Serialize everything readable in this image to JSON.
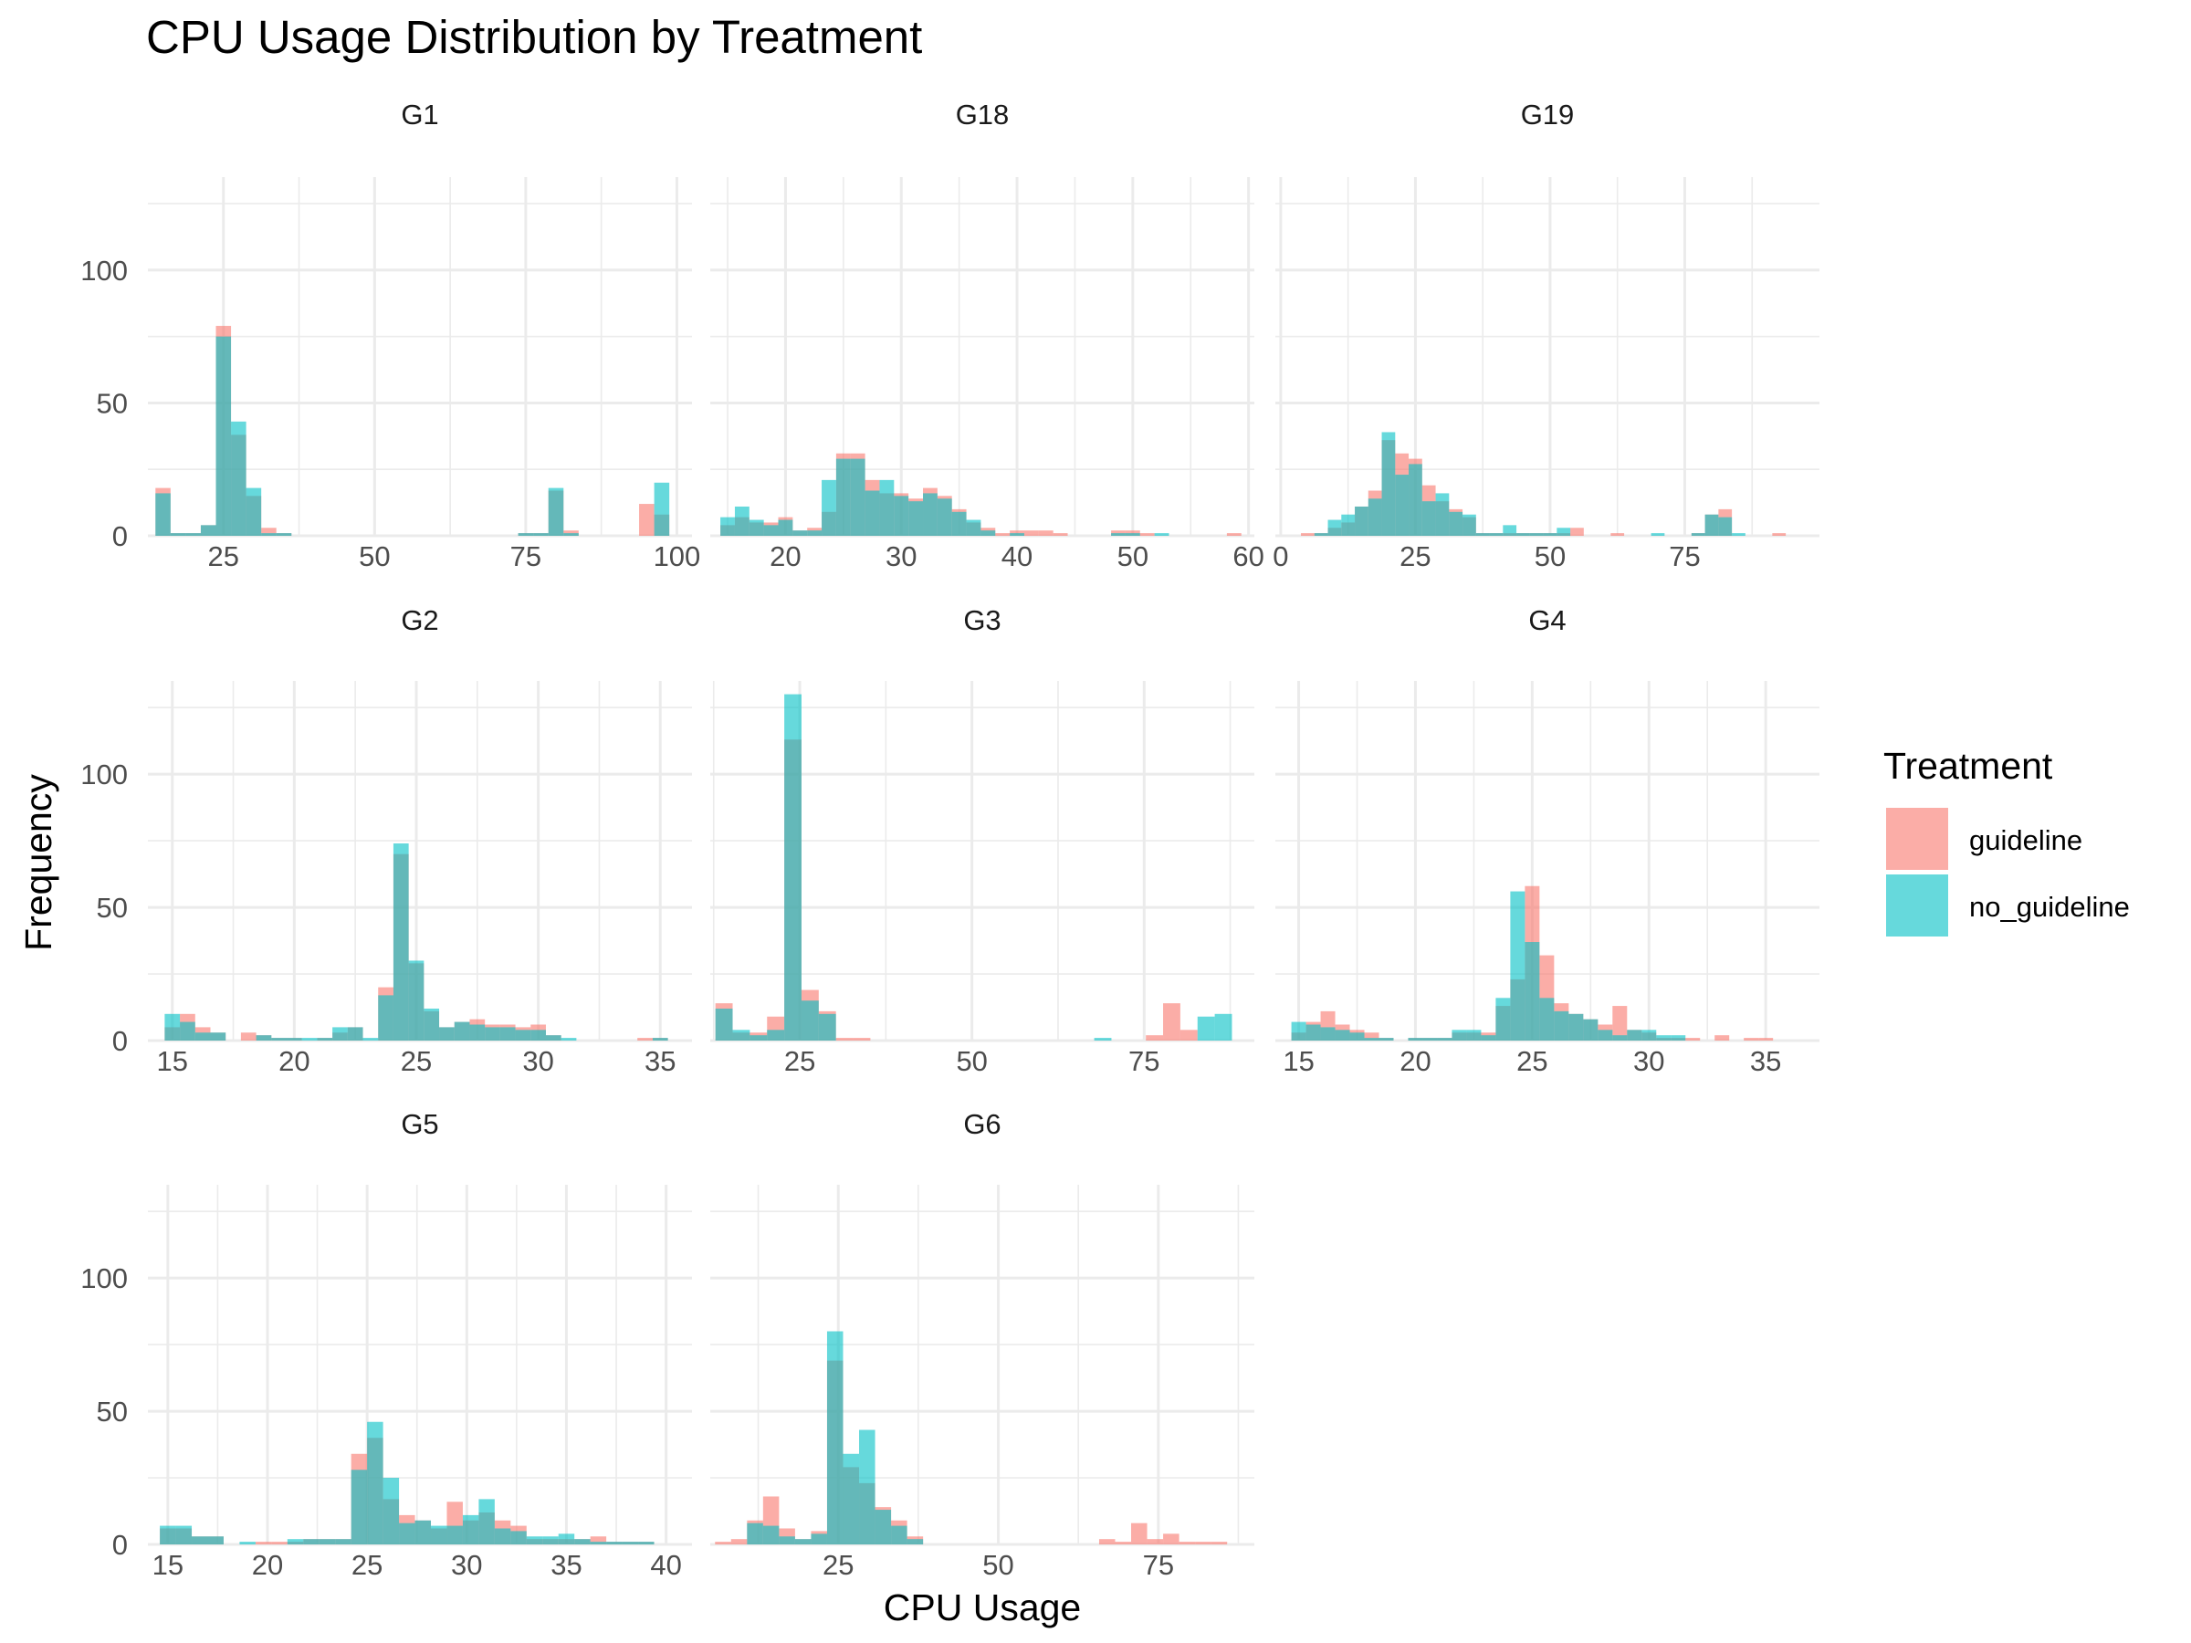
{
  "chart_data": {
    "type": "histogram",
    "title": "CPU Usage Distribution by Treatment",
    "xlabel": "CPU Usage",
    "ylabel": "Frequency",
    "ylim": [
      0,
      135
    ],
    "y_ticks": [
      0,
      50,
      100
    ],
    "legend": {
      "title": "Treatment",
      "placement": "right",
      "entries": [
        {
          "name": "guideline",
          "color": "#F8766D"
        },
        {
          "name": "no_guideline",
          "color": "#00BFC4"
        }
      ]
    },
    "bar_opacity": 0.6,
    "panels": [
      {
        "name": "G1",
        "xlim": [
          12.5,
          102.5
        ],
        "x_ticks": [
          25,
          50,
          75,
          100
        ],
        "x": [
          15,
          17.5,
          20,
          22.5,
          25,
          27.5,
          30,
          32.5,
          35,
          75,
          77.5,
          80,
          82.5,
          85,
          95,
          97.5
        ],
        "series": [
          {
            "name": "guideline",
            "values": [
              18,
              1,
              1,
              4,
              79,
              38,
              15,
              3,
              1,
              1,
              1,
              17,
              2,
              0,
              12,
              8
            ]
          },
          {
            "name": "no_guideline",
            "values": [
              16,
              1,
              1,
              4,
              75,
              43,
              18,
              1,
              1,
              1,
              1,
              18,
              1,
              0,
              0,
              20
            ]
          }
        ]
      },
      {
        "name": "G18",
        "xlim": [
          13.5,
          60.5
        ],
        "x_ticks": [
          20,
          30,
          40,
          50,
          60
        ],
        "x": [
          15,
          16.25,
          17.5,
          18.75,
          20,
          21.25,
          22.5,
          23.75,
          25,
          26.25,
          27.5,
          28.75,
          30,
          31.25,
          32.5,
          33.75,
          35,
          36.25,
          37.5,
          38.75,
          40,
          41.25,
          42.5,
          43.75,
          45,
          46.25,
          47.5,
          48.75,
          50,
          51.25,
          52.5,
          53.75,
          55,
          56.25,
          57.5,
          58.75
        ],
        "series": [
          {
            "name": "guideline",
            "values": [
              4,
              7,
              5,
              5,
              7,
              2,
              3,
              9,
              31,
              31,
              21,
              16,
              16,
              14,
              18,
              15,
              10,
              5,
              3,
              1,
              2,
              2,
              2,
              1,
              0,
              0,
              0,
              2,
              2,
              1,
              0,
              0,
              0,
              0,
              0,
              1
            ]
          },
          {
            "name": "no_guideline",
            "values": [
              7,
              11,
              6,
              4,
              6,
              2,
              2,
              21,
              29,
              29,
              17,
              21,
              15,
              13,
              16,
              14,
              9,
              6,
              2,
              0,
              1,
              0,
              0,
              0,
              0,
              0,
              0,
              1,
              1,
              0,
              1,
              0,
              0,
              0,
              0,
              0
            ]
          }
        ]
      },
      {
        "name": "G19",
        "xlim": [
          -1,
          100
        ],
        "x_ticks": [
          0,
          25,
          50,
          75
        ],
        "x": [
          5,
          7.5,
          10,
          12.5,
          15,
          17.5,
          20,
          22.5,
          25,
          27.5,
          30,
          32.5,
          35,
          37.5,
          40,
          42.5,
          45,
          47.5,
          50,
          52.5,
          55,
          57.5,
          60,
          62.5,
          65,
          67.5,
          70,
          72.5,
          75,
          77.5,
          80,
          82.5,
          85,
          87.5,
          90,
          92.5
        ],
        "series": [
          {
            "name": "guideline",
            "values": [
              1,
              1,
              3,
              5,
              11,
              17,
              36,
              31,
              29,
              19,
              13,
              10,
              7,
              1,
              1,
              1,
              1,
              1,
              1,
              1,
              3,
              0,
              0,
              1,
              0,
              0,
              0,
              0,
              0,
              1,
              8,
              10,
              0,
              0,
              0,
              1
            ]
          },
          {
            "name": "no_guideline",
            "values": [
              0,
              1,
              6,
              8,
              11,
              14,
              39,
              23,
              27,
              13,
              16,
              9,
              8,
              1,
              1,
              4,
              1,
              1,
              1,
              3,
              0,
              0,
              0,
              0,
              0,
              0,
              1,
              0,
              0,
              1,
              8,
              7,
              1,
              0,
              0,
              0
            ]
          }
        ]
      },
      {
        "name": "G2",
        "xlim": [
          14,
          36.3
        ],
        "x_ticks": [
          15,
          20,
          25,
          30,
          35
        ],
        "x": [
          15,
          15.625,
          16.25,
          16.875,
          17.5,
          18.125,
          18.75,
          19.375,
          20,
          20.625,
          21.25,
          21.875,
          22.5,
          23.125,
          23.75,
          24.375,
          25,
          25.625,
          26.25,
          26.875,
          27.5,
          28.125,
          28.75,
          29.375,
          30,
          30.625,
          31.25,
          31.875,
          32.5,
          33.125,
          33.75,
          34.375,
          35,
          35.625
        ],
        "series": [
          {
            "name": "guideline",
            "values": [
              5,
              10,
              5,
              3,
              0,
              3,
              2,
              1,
              1,
              0,
              1,
              3,
              5,
              0,
              20,
              70,
              29,
              11,
              5,
              7,
              8,
              6,
              6,
              5,
              6,
              2,
              0,
              0,
              0,
              0,
              0,
              1,
              1,
              0
            ]
          },
          {
            "name": "no_guideline",
            "values": [
              10,
              7,
              3,
              3,
              0,
              0,
              2,
              1,
              1,
              1,
              1,
              5,
              5,
              1,
              17,
              74,
              30,
              12,
              5,
              7,
              6,
              5,
              5,
              4,
              4,
              2,
              1,
              0,
              0,
              0,
              0,
              0,
              1,
              0
            ]
          }
        ]
      },
      {
        "name": "G3",
        "xlim": [
          12,
          91
        ],
        "x_ticks": [
          25,
          50,
          75
        ],
        "x": [
          14,
          16.5,
          19,
          21.5,
          24,
          26.5,
          29,
          31.5,
          34,
          69,
          76.5,
          79,
          81.5,
          84,
          86.5
        ],
        "series": [
          {
            "name": "guideline",
            "values": [
              14,
              3,
              3,
              9,
              113,
              19,
              11,
              1,
              1,
              0,
              2,
              14,
              4,
              0,
              0
            ]
          },
          {
            "name": "no_guideline",
            "values": [
              12,
              4,
              2,
              4,
              130,
              15,
              10,
              0,
              0,
              1,
              0,
              0,
              0,
              9,
              10
            ]
          }
        ]
      },
      {
        "name": "G4",
        "xlim": [
          14,
          37.3
        ],
        "x_ticks": [
          15,
          20,
          25,
          30,
          35
        ],
        "x": [
          15,
          15.625,
          16.25,
          16.875,
          17.5,
          18.125,
          18.75,
          19.375,
          20,
          20.625,
          21.25,
          21.875,
          22.5,
          23.125,
          23.75,
          24.375,
          25,
          25.625,
          26.25,
          26.875,
          27.5,
          28.125,
          28.75,
          29.375,
          30,
          30.625,
          31.25,
          31.875,
          32.5,
          33.125,
          33.75,
          34.375,
          35,
          35.625,
          36.25
        ],
        "series": [
          {
            "name": "guideline",
            "values": [
              3,
              7,
              11,
              6,
              4,
              3,
              1,
              0,
              1,
              1,
              1,
              3,
              3,
              3,
              13,
              23,
              58,
              32,
              14,
              10,
              8,
              6,
              13,
              4,
              3,
              1,
              1,
              1,
              0,
              2,
              0,
              1,
              1,
              0,
              0
            ]
          },
          {
            "name": "no_guideline",
            "values": [
              7,
              6,
              5,
              4,
              3,
              1,
              1,
              0,
              1,
              1,
              1,
              4,
              4,
              2,
              16,
              56,
              37,
              16,
              11,
              10,
              8,
              4,
              2,
              4,
              4,
              2,
              2,
              0,
              0,
              0,
              0,
              0,
              0,
              0,
              0
            ]
          }
        ]
      },
      {
        "name": "G5",
        "xlim": [
          14,
          41.3
        ],
        "x_ticks": [
          15,
          20,
          25,
          30,
          35,
          40
        ],
        "x": [
          15,
          15.8,
          16.6,
          17.4,
          18.2,
          19,
          19.8,
          20.6,
          21.4,
          22.2,
          23,
          23.8,
          24.6,
          25.4,
          26.2,
          27,
          27.8,
          28.6,
          29.4,
          30.2,
          31,
          31.8,
          32.6,
          33.4,
          34.2,
          35,
          35.8,
          36.6,
          37.4,
          38.2,
          39,
          39.8
        ],
        "series": [
          {
            "name": "guideline",
            "values": [
              6,
              6,
              3,
              3,
              0,
              0,
              1,
              1,
              1,
              2,
              2,
              2,
              34,
              40,
              17,
              11,
              9,
              6,
              16,
              9,
              12,
              9,
              7,
              2,
              2,
              2,
              2,
              3,
              1,
              1,
              1,
              0
            ]
          },
          {
            "name": "no_guideline",
            "values": [
              7,
              7,
              3,
              3,
              0,
              1,
              0,
              0,
              2,
              2,
              2,
              2,
              28,
              46,
              25,
              8,
              9,
              7,
              7,
              11,
              17,
              6,
              5,
              3,
              3,
              4,
              2,
              1,
              1,
              1,
              1,
              0
            ]
          }
        ]
      },
      {
        "name": "G6",
        "xlim": [
          5,
          90
        ],
        "x_ticks": [
          25,
          50,
          75
        ],
        "x": [
          7,
          9.5,
          12,
          14.5,
          17,
          19.5,
          22,
          24.5,
          27,
          29.5,
          32,
          34.5,
          37,
          64.5,
          67,
          69.5,
          72,
          74.5,
          77,
          79.5,
          82,
          84.5,
          87
        ],
        "series": [
          {
            "name": "guideline",
            "values": [
              1,
              2,
              9,
              18,
              6,
              2,
              5,
              69,
              29,
              23,
              14,
              9,
              3,
              0,
              2,
              1,
              8,
              2,
              4,
              1,
              1,
              1,
              0
            ]
          },
          {
            "name": "no_guideline",
            "values": [
              0,
              0,
              8,
              7,
              3,
              2,
              4,
              80,
              34,
              43,
              13,
              7,
              2,
              0,
              0,
              0,
              0,
              0,
              0,
              0,
              0,
              0,
              0
            ]
          }
        ]
      }
    ]
  }
}
